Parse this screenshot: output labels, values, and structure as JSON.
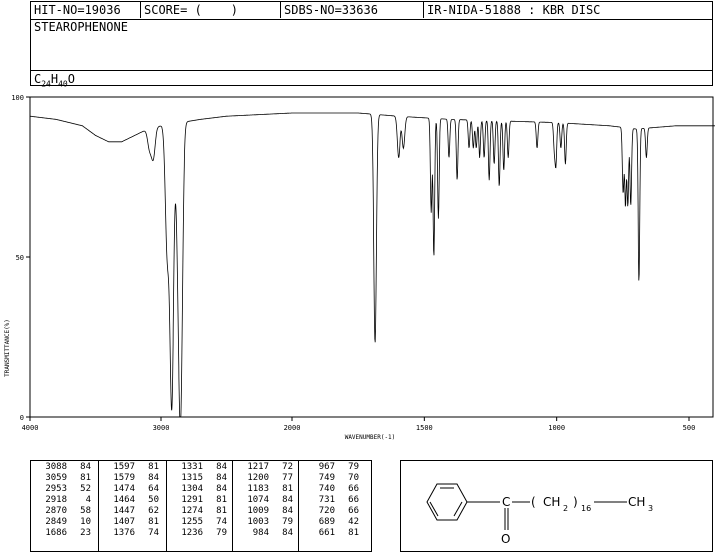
{
  "header": {
    "hit_no": "HIT-NO=19036",
    "score_label": "SCORE=",
    "score_value": "(    )",
    "sdbs_no": "SDBS-NO=33636",
    "ir_nida": "IR-NIDA-51888 : KBR DISC",
    "compound_name": "STEAROPHENONE",
    "formula": {
      "c": "C",
      "c_n": "24",
      "h": "H",
      "h_n": "40",
      "o": "O"
    }
  },
  "chart_data": {
    "type": "line",
    "title": "",
    "xlabel": "WAVENUMBER(-1)",
    "ylabel": "TRANSMITTANCE(%)",
    "xlim": [
      4000,
      400
    ],
    "ylim": [
      0,
      100
    ],
    "x_ticks": [
      "4000",
      "3000",
      "2000",
      "1500",
      "1000",
      "500"
    ],
    "y_ticks": [
      "100",
      "50",
      "0"
    ],
    "series": [
      {
        "name": "",
        "baseline": [
          [
            4000,
            94
          ],
          [
            3800,
            93
          ],
          [
            3600,
            91
          ],
          [
            3500,
            88
          ],
          [
            3400,
            86
          ],
          [
            3300,
            86
          ],
          [
            3200,
            88
          ],
          [
            3100,
            90
          ],
          [
            3000,
            91
          ],
          [
            2700,
            93
          ],
          [
            2500,
            94
          ],
          [
            2000,
            95
          ],
          [
            1750,
            95
          ],
          [
            1600,
            94
          ],
          [
            1400,
            93
          ],
          [
            1000,
            92
          ],
          [
            800,
            91
          ],
          [
            700,
            90
          ],
          [
            550,
            91
          ],
          [
            400,
            91
          ]
        ],
        "peaks": [
          {
            "x": 3088,
            "y": 84
          },
          {
            "x": 3059,
            "y": 81
          },
          {
            "x": 2953,
            "y": 52
          },
          {
            "x": 2918,
            "y": 4
          },
          {
            "x": 2870,
            "y": 58
          },
          {
            "x": 2849,
            "y": 10
          },
          {
            "x": 1686,
            "y": 23
          },
          {
            "x": 1597,
            "y": 81
          },
          {
            "x": 1579,
            "y": 84
          },
          {
            "x": 1474,
            "y": 64
          },
          {
            "x": 1464,
            "y": 50
          },
          {
            "x": 1447,
            "y": 62
          },
          {
            "x": 1407,
            "y": 81
          },
          {
            "x": 1376,
            "y": 74
          },
          {
            "x": 1331,
            "y": 84
          },
          {
            "x": 1315,
            "y": 84
          },
          {
            "x": 1304,
            "y": 84
          },
          {
            "x": 1291,
            "y": 81
          },
          {
            "x": 1274,
            "y": 81
          },
          {
            "x": 1255,
            "y": 74
          },
          {
            "x": 1236,
            "y": 79
          },
          {
            "x": 1217,
            "y": 72
          },
          {
            "x": 1200,
            "y": 77
          },
          {
            "x": 1183,
            "y": 81
          },
          {
            "x": 1074,
            "y": 84
          },
          {
            "x": 1009,
            "y": 84
          },
          {
            "x": 1003,
            "y": 79
          },
          {
            "x": 984,
            "y": 84
          },
          {
            "x": 967,
            "y": 79
          },
          {
            "x": 749,
            "y": 70
          },
          {
            "x": 740,
            "y": 66
          },
          {
            "x": 731,
            "y": 66
          },
          {
            "x": 720,
            "y": 66
          },
          {
            "x": 689,
            "y": 42
          },
          {
            "x": 661,
            "y": 81
          }
        ]
      }
    ]
  },
  "peak_table": {
    "columns": [
      [
        [
          "3088",
          "84"
        ],
        [
          "3059",
          "81"
        ],
        [
          "2953",
          "52"
        ],
        [
          "2918",
          "4"
        ],
        [
          "2870",
          "58"
        ],
        [
          "2849",
          "10"
        ],
        [
          "1686",
          "23"
        ]
      ],
      [
        [
          "1597",
          "81"
        ],
        [
          "1579",
          "84"
        ],
        [
          "1474",
          "64"
        ],
        [
          "1464",
          "50"
        ],
        [
          "1447",
          "62"
        ],
        [
          "1407",
          "81"
        ],
        [
          "1376",
          "74"
        ]
      ],
      [
        [
          "1331",
          "84"
        ],
        [
          "1315",
          "84"
        ],
        [
          "1304",
          "84"
        ],
        [
          "1291",
          "81"
        ],
        [
          "1274",
          "81"
        ],
        [
          "1255",
          "74"
        ],
        [
          "1236",
          "79"
        ]
      ],
      [
        [
          "1217",
          "72"
        ],
        [
          "1200",
          "77"
        ],
        [
          "1183",
          "81"
        ],
        [
          "1074",
          "84"
        ],
        [
          "1009",
          "84"
        ],
        [
          "1003",
          "79"
        ],
        [
          "984",
          "84"
        ]
      ],
      [
        [
          "967",
          "79"
        ],
        [
          "749",
          "70"
        ],
        [
          "740",
          "66"
        ],
        [
          "731",
          "66"
        ],
        [
          "720",
          "66"
        ],
        [
          "689",
          "42"
        ],
        [
          "661",
          "81"
        ]
      ]
    ]
  },
  "structure": {
    "carbonyl_c": "C",
    "oxygen": "O",
    "paren_open": "(",
    "ch2": "CH",
    "ch2_sub": "2",
    "paren_close": ")",
    "repeat": "16",
    "ch3": "CH",
    "ch3_sub": "3"
  }
}
